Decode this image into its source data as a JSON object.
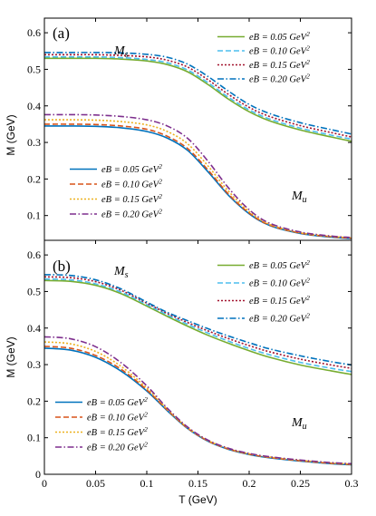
{
  "chart_data": [
    {
      "type": "line",
      "panel_label": "(a)",
      "xlabel": "",
      "ylabel": "M (GeV)",
      "xlim": [
        0,
        0.3
      ],
      "ylim": [
        0,
        0.64
      ],
      "x_ticks": [],
      "y_ticks": [
        "0.1",
        "0.2",
        "0.3",
        "0.4",
        "0.5",
        "0.6"
      ],
      "annotations": [
        {
          "base": "M",
          "sub": "s"
        },
        {
          "base": "M",
          "sub": "u"
        }
      ],
      "legends": [
        {
          "placement": "top-right",
          "entries": [
            "eB = 0.05 GeV2",
            "eB = 0.10 GeV2",
            "eB = 0.15 GeV2",
            "eB = 0.20 GeV2"
          ]
        },
        {
          "placement": "bottom-left",
          "entries": [
            "eB = 0.05 GeV2",
            "eB = 0.10 GeV2",
            "eB = 0.15 GeV2",
            "eB = 0.20 GeV2"
          ]
        }
      ],
      "x": [
        0,
        0.025,
        0.05,
        0.075,
        0.1,
        0.12,
        0.14,
        0.16,
        0.18,
        0.2,
        0.22,
        0.25,
        0.28,
        0.3
      ],
      "series": [
        {
          "name": "eB = 0.05 GeV2",
          "group": "Ms",
          "values": [
            0.53,
            0.53,
            0.53,
            0.528,
            0.523,
            0.513,
            0.493,
            0.458,
            0.418,
            0.384,
            0.359,
            0.334,
            0.315,
            0.303
          ]
        },
        {
          "name": "eB = 0.10 GeV2",
          "group": "Ms",
          "values": [
            0.534,
            0.534,
            0.534,
            0.532,
            0.527,
            0.518,
            0.498,
            0.463,
            0.423,
            0.389,
            0.364,
            0.339,
            0.32,
            0.309
          ]
        },
        {
          "name": "eB = 0.15 GeV2",
          "group": "Ms",
          "values": [
            0.54,
            0.54,
            0.54,
            0.538,
            0.534,
            0.525,
            0.506,
            0.471,
            0.431,
            0.396,
            0.371,
            0.346,
            0.327,
            0.315
          ]
        },
        {
          "name": "eB = 0.20 GeV2",
          "group": "Ms",
          "values": [
            0.546,
            0.546,
            0.546,
            0.545,
            0.541,
            0.533,
            0.514,
            0.48,
            0.44,
            0.404,
            0.379,
            0.354,
            0.335,
            0.323
          ]
        },
        {
          "name": "eB = 0.05 GeV2",
          "group": "Mu",
          "values": [
            0.345,
            0.345,
            0.344,
            0.34,
            0.33,
            0.312,
            0.278,
            0.219,
            0.155,
            0.105,
            0.073,
            0.051,
            0.041,
            0.037
          ]
        },
        {
          "name": "eB = 0.10 GeV2",
          "group": "Mu",
          "values": [
            0.35,
            0.35,
            0.349,
            0.345,
            0.336,
            0.317,
            0.283,
            0.224,
            0.158,
            0.107,
            0.074,
            0.052,
            0.042,
            0.038
          ]
        },
        {
          "name": "eB = 0.15 GeV2",
          "group": "Mu",
          "values": [
            0.362,
            0.362,
            0.361,
            0.357,
            0.348,
            0.33,
            0.296,
            0.235,
            0.166,
            0.111,
            0.076,
            0.053,
            0.043,
            0.039
          ]
        },
        {
          "name": "eB = 0.20 GeV2",
          "group": "Mu",
          "values": [
            0.376,
            0.376,
            0.375,
            0.371,
            0.362,
            0.345,
            0.311,
            0.248,
            0.175,
            0.116,
            0.079,
            0.055,
            0.044,
            0.04
          ]
        }
      ]
    },
    {
      "type": "line",
      "panel_label": "(b)",
      "xlabel": "T (GeV)",
      "ylabel": "M (GeV)",
      "xlim": [
        0,
        0.3
      ],
      "ylim": [
        0,
        0.64
      ],
      "x_ticks": [
        "0",
        "0.05",
        "0.1",
        "0.15",
        "0.2",
        "0.25",
        "0.3"
      ],
      "y_ticks": [
        "0",
        "0.1",
        "0.2",
        "0.3",
        "0.4",
        "0.5",
        "0.6"
      ],
      "annotations": [
        {
          "base": "M",
          "sub": "s"
        },
        {
          "base": "M",
          "sub": "u"
        }
      ],
      "legends": [
        {
          "placement": "top-right",
          "entries": [
            "eB = 0.05 GeV2",
            "eB = 0.10 GeV2",
            "eB = 0.15 GeV2",
            "eB = 0.20 GeV2"
          ]
        },
        {
          "placement": "bottom-left",
          "entries": [
            "eB = 0.05 GeV2",
            "eB = 0.10 GeV2",
            "eB = 0.15 GeV2",
            "eB = 0.20 GeV2"
          ]
        }
      ],
      "x": [
        0,
        0.025,
        0.05,
        0.075,
        0.1,
        0.12,
        0.14,
        0.16,
        0.18,
        0.2,
        0.22,
        0.25,
        0.28,
        0.3
      ],
      "series": [
        {
          "name": "eB = 0.05 GeV2",
          "group": "Ms",
          "values": [
            0.53,
            0.528,
            0.517,
            0.494,
            0.46,
            0.432,
            0.405,
            0.38,
            0.358,
            0.338,
            0.32,
            0.299,
            0.283,
            0.273
          ]
        },
        {
          "name": "eB = 0.10 GeV2",
          "group": "Ms",
          "values": [
            0.534,
            0.532,
            0.521,
            0.498,
            0.464,
            0.436,
            0.41,
            0.386,
            0.364,
            0.344,
            0.327,
            0.306,
            0.29,
            0.281
          ]
        },
        {
          "name": "eB = 0.15 GeV2",
          "group": "Ms",
          "values": [
            0.54,
            0.538,
            0.527,
            0.503,
            0.468,
            0.44,
            0.415,
            0.392,
            0.371,
            0.352,
            0.335,
            0.315,
            0.299,
            0.29
          ]
        },
        {
          "name": "eB = 0.20 GeV2",
          "group": "Ms",
          "values": [
            0.546,
            0.544,
            0.532,
            0.507,
            0.471,
            0.443,
            0.42,
            0.398,
            0.378,
            0.36,
            0.343,
            0.324,
            0.308,
            0.299
          ]
        },
        {
          "name": "eB = 0.05 GeV2",
          "group": "Mu",
          "values": [
            0.345,
            0.34,
            0.32,
            0.282,
            0.228,
            0.174,
            0.125,
            0.09,
            0.068,
            0.054,
            0.045,
            0.036,
            0.029,
            0.026
          ]
        },
        {
          "name": "eB = 0.10 GeV2",
          "group": "Mu",
          "values": [
            0.35,
            0.345,
            0.325,
            0.287,
            0.231,
            0.176,
            0.126,
            0.091,
            0.069,
            0.055,
            0.046,
            0.037,
            0.03,
            0.027
          ]
        },
        {
          "name": "eB = 0.15 GeV2",
          "group": "Mu",
          "values": [
            0.362,
            0.357,
            0.336,
            0.295,
            0.236,
            0.178,
            0.127,
            0.092,
            0.07,
            0.056,
            0.047,
            0.038,
            0.031,
            0.028
          ]
        },
        {
          "name": "eB = 0.20 GeV2",
          "group": "Mu",
          "values": [
            0.376,
            0.371,
            0.349,
            0.305,
            0.242,
            0.181,
            0.129,
            0.093,
            0.071,
            0.057,
            0.048,
            0.039,
            0.032,
            0.029
          ]
        }
      ]
    }
  ],
  "styles": {
    "series_colors": [
      "#77ac30",
      "#4dbeee",
      "#a2142f",
      "#0072bd"
    ],
    "series_colors_mu": [
      "#0072bd",
      "#d95319",
      "#edb120",
      "#7e2f8e"
    ],
    "series_dashes": [
      "none",
      "6 3",
      "2 2",
      "7 2.5 1.5 2.5"
    ]
  }
}
